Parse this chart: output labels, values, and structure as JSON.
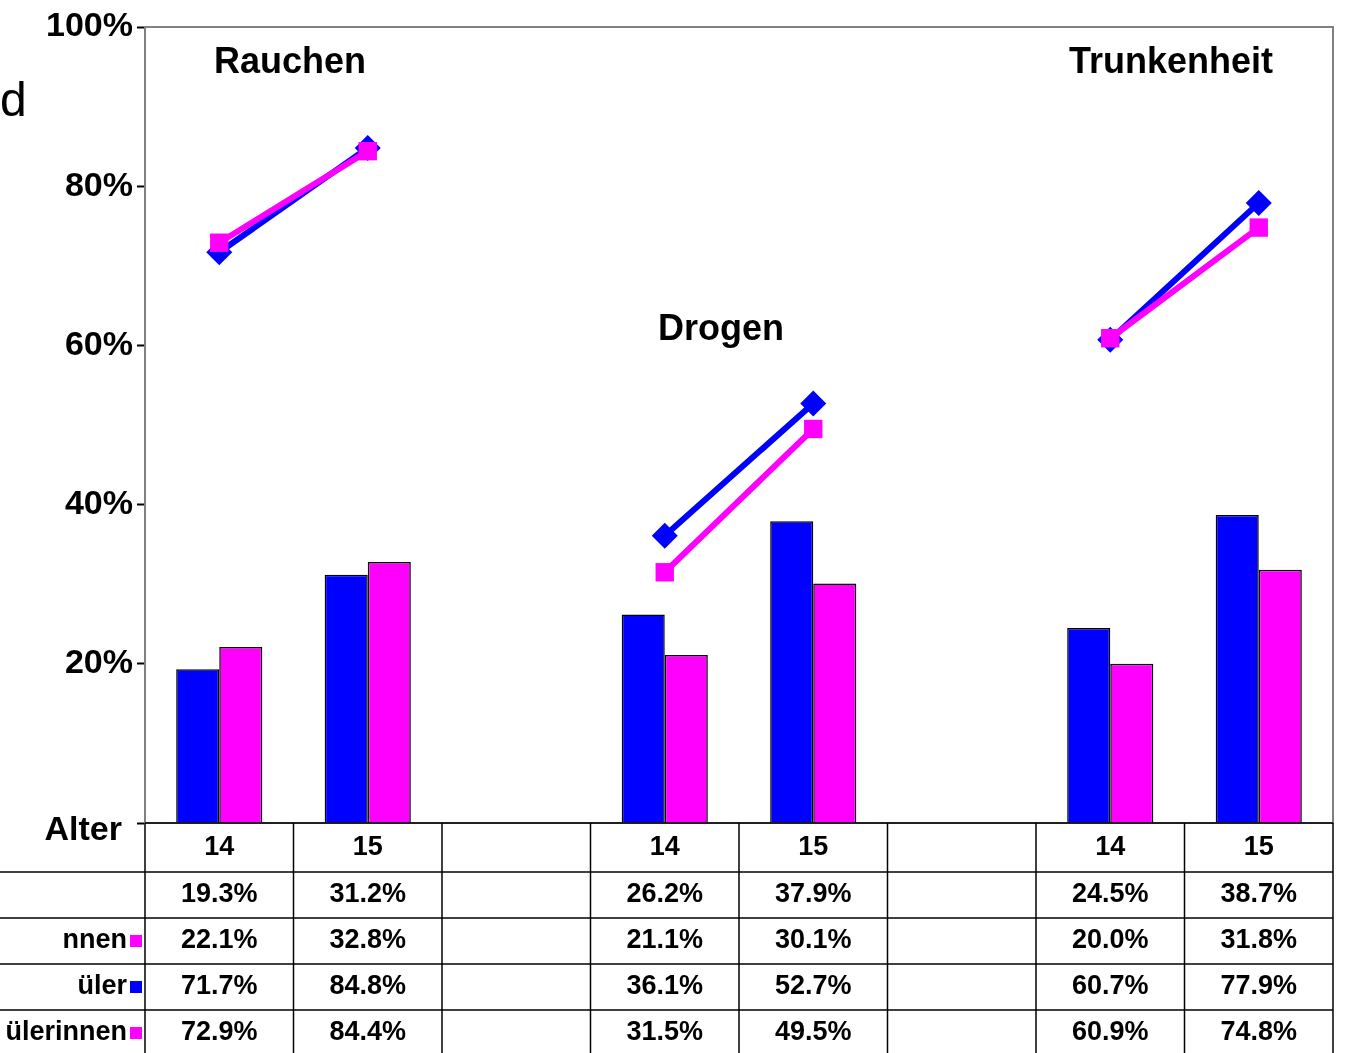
{
  "chart_data": {
    "type": "bar",
    "xlabel": "Alter",
    "categories": [
      "14",
      "15",
      null,
      "14",
      "15",
      null,
      "14",
      "15"
    ],
    "series": [
      {
        "color": "#0000ff",
        "values": [
          19.3,
          31.2,
          null,
          26.2,
          37.9,
          null,
          24.5,
          38.7
        ],
        "value_labels": [
          "19.3%",
          "31.2%",
          null,
          "26.2%",
          "37.9%",
          null,
          "24.5%",
          "38.7%"
        ]
      },
      {
        "name": "nnen",
        "color": "#ff00ff",
        "values": [
          22.1,
          32.8,
          null,
          21.1,
          30.1,
          null,
          20.0,
          31.8
        ],
        "value_labels": [
          "22.1%",
          "32.8%",
          null,
          "21.1%",
          "30.1%",
          null,
          "20.0%",
          "31.8%"
        ]
      },
      {
        "name": "üler",
        "type": "line",
        "marker": "diamond",
        "color": "#0000ff",
        "values": [
          71.7,
          84.8,
          null,
          36.1,
          52.7,
          null,
          60.7,
          77.9
        ],
        "value_labels": [
          "71.7%",
          "84.8%",
          null,
          "36.1%",
          "52.7%",
          null,
          "60.7%",
          "77.9%"
        ]
      },
      {
        "name": "ülerinnen",
        "type": "line",
        "marker": "square",
        "color": "#ff00ff",
        "values": [
          72.9,
          84.4,
          null,
          31.5,
          49.5,
          null,
          60.9,
          74.8
        ],
        "value_labels": [
          "72.9%",
          "84.4%",
          null,
          "31.5%",
          "49.5%",
          null,
          "60.9%",
          "74.8%"
        ]
      }
    ],
    "ylim": [
      0,
      100
    ],
    "yticks": [
      {
        "value": 0,
        "label": null
      },
      {
        "value": 20,
        "label": "20%"
      },
      {
        "value": 40,
        "label": "40%"
      },
      {
        "value": 60,
        "label": "60%"
      },
      {
        "value": 80,
        "label": "80%"
      },
      {
        "value": 100,
        "label": "100%"
      }
    ],
    "annotations": [
      "d",
      "Rauchen",
      "Drogen",
      "Trunkenheit"
    ],
    "legend": "bottom left",
    "grid": false
  }
}
